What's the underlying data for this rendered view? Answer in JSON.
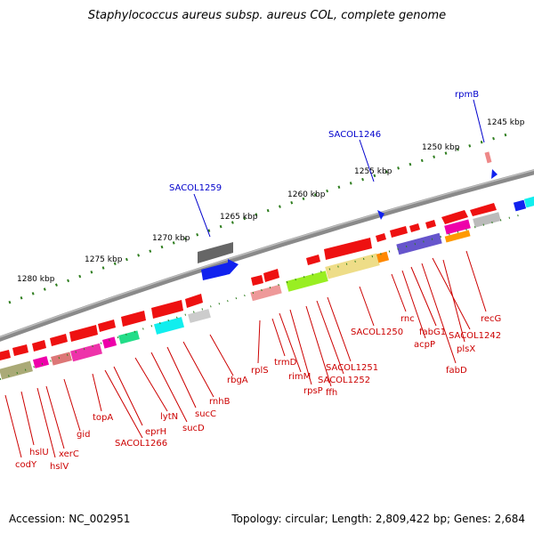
{
  "title": "Staphylococcus aureus subsp. aureus COL, complete genome",
  "footer": {
    "accession": "Accession: NC_002951",
    "summary": "Topology: circular; Length: 2,809,422 bp; Genes: 2,684"
  },
  "scale_labels": [
    "1245 kbp",
    "1250 kbp",
    "1255 kbp",
    "1260 kbp",
    "1265 kbp",
    "1270 kbp",
    "1275 kbp",
    "1280 kbp"
  ],
  "outer_gene_labels": [
    "rpmB",
    "SACOL1246",
    "SACOL1259"
  ],
  "inner_gene_labels": [
    "recG",
    "plsX",
    "SACOL1242",
    "fabD",
    "fabG1",
    "acpP",
    "rnc",
    "SACOL1250",
    "SACOL1251",
    "SACOL1252",
    "ffh",
    "rpsP",
    "rimM",
    "trmD",
    "rplS",
    "rbgA",
    "rnhB",
    "sucC",
    "sucD",
    "lytN",
    "eprH",
    "SACOL1266",
    "topA",
    "gid",
    "xerC",
    "hslV",
    "hslU",
    "codY"
  ],
  "colors": {
    "backbone": "#7f7f7f",
    "scale_ticks": "#2e7d1e",
    "gene_label_inner": "#cc0000",
    "gene_label_outer": "#0000cc",
    "gene_red": "#ee1111",
    "gene_blue": "#1122ee"
  }
}
